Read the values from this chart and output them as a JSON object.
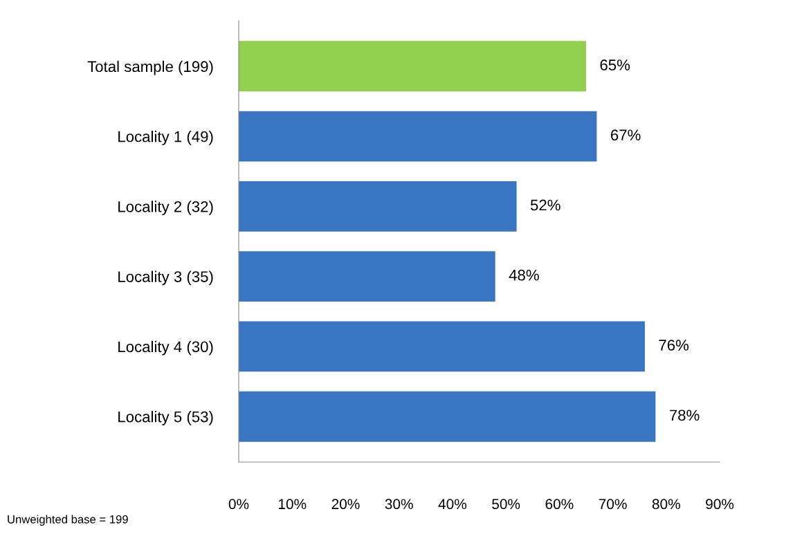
{
  "chart_data": {
    "type": "bar",
    "orientation": "horizontal",
    "categories": [
      "Total sample (199)",
      "Locality 1 (49)",
      "Locality 2 (32)",
      "Locality 3 (35)",
      "Locality 4 (30)",
      "Locality 5 (53)"
    ],
    "values": [
      65,
      67,
      52,
      48,
      76,
      78
    ],
    "colors": [
      "#92d050",
      "#3a75c4",
      "#3a75c4",
      "#3a75c4",
      "#3a75c4",
      "#3a75c4"
    ],
    "value_labels": [
      "65%",
      "67%",
      "52%",
      "48%",
      "76%",
      "78%"
    ],
    "xlim": [
      0,
      90
    ],
    "xticks": [
      {
        "value": 0,
        "label": "0%"
      },
      {
        "value": 10,
        "label": "10%"
      },
      {
        "value": 20,
        "label": "20%"
      },
      {
        "value": 30,
        "label": "30%"
      },
      {
        "value": 40,
        "label": "40%"
      },
      {
        "value": 50,
        "label": "50%"
      },
      {
        "value": 60,
        "label": "60%"
      },
      {
        "value": 70,
        "label": "70%"
      },
      {
        "value": 80,
        "label": "80%"
      },
      {
        "value": 90,
        "label": "90%"
      }
    ],
    "grid": false,
    "legend": false,
    "annotations": [
      "Unweighted base = 199"
    ]
  }
}
